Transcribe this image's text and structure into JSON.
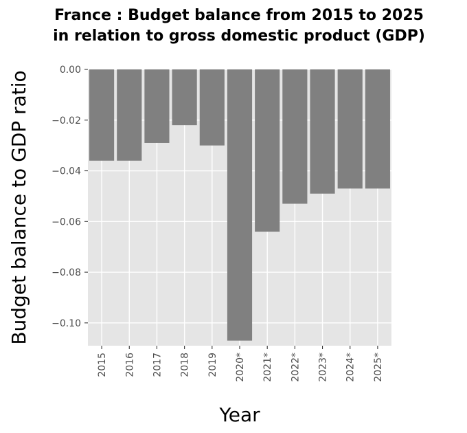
{
  "chart_data": {
    "type": "bar",
    "title_line1": "France : Budget balance from 2015 to 2025",
    "title_line2": "in relation to gross domestic product (GDP)",
    "xlabel": "Year",
    "ylabel": "Budget balance to GDP ratio",
    "categories": [
      "2015",
      "2016",
      "2017",
      "2018",
      "2019",
      "2020*",
      "2021*",
      "2022*",
      "2023*",
      "2024*",
      "2025*"
    ],
    "values": [
      -0.036,
      -0.036,
      -0.029,
      -0.022,
      -0.03,
      -0.107,
      -0.064,
      -0.053,
      -0.049,
      -0.047,
      -0.047
    ],
    "ylim": [
      -0.109,
      0.0
    ],
    "yticks": [
      0.0,
      -0.02,
      -0.04,
      -0.06,
      -0.08,
      -0.1
    ],
    "ytick_labels": [
      "0.00",
      "−0.02",
      "−0.04",
      "−0.06",
      "−0.08",
      "−0.10"
    ],
    "grid": true,
    "colors": {
      "bar": "#808080",
      "panel": "#e5e5e5",
      "grid": "#ffffff",
      "text": "#000000",
      "tick_text": "#4d4d4d"
    }
  }
}
